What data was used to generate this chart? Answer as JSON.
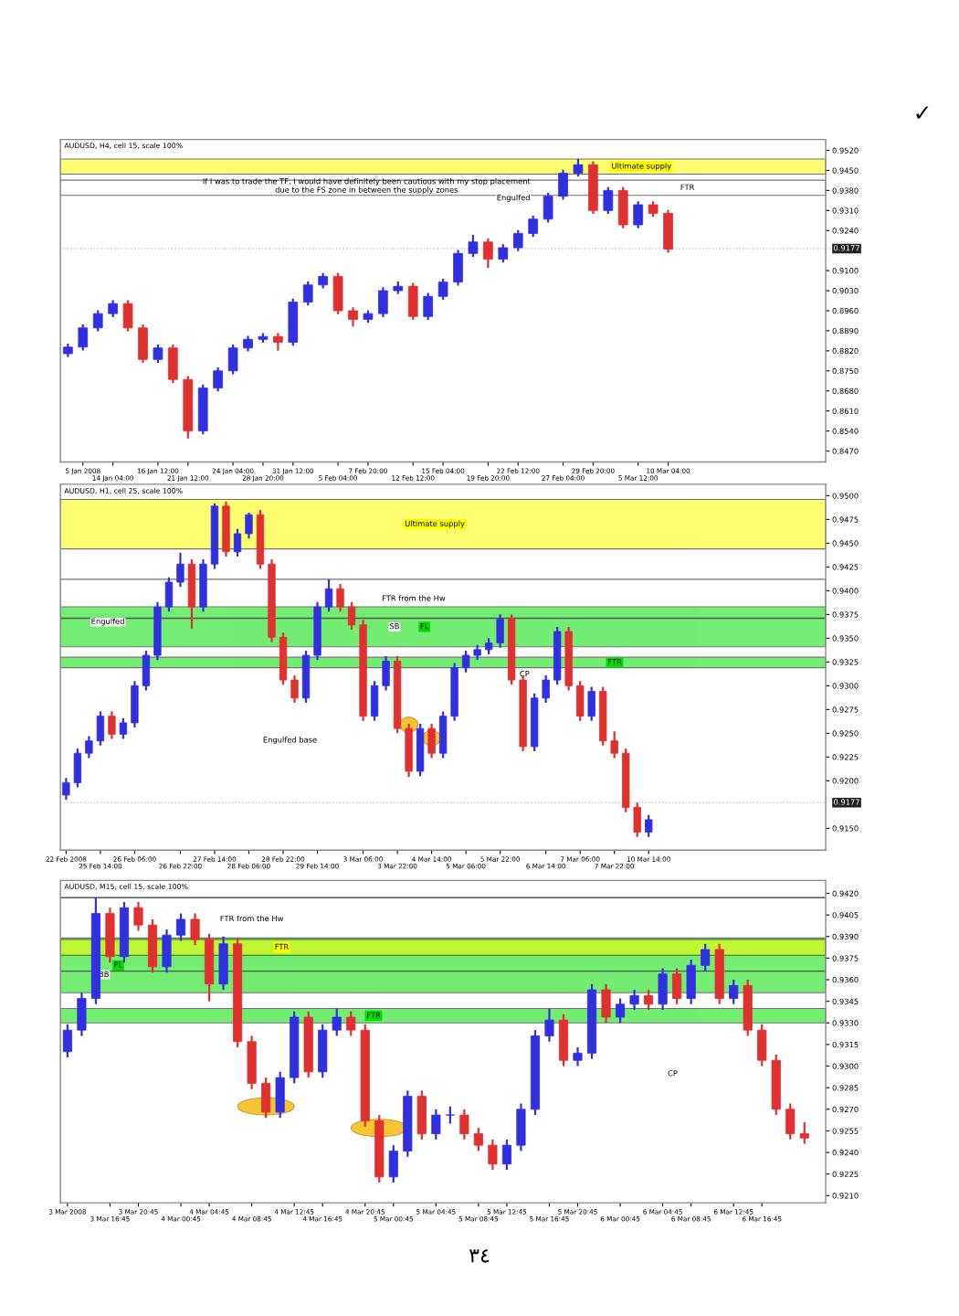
{
  "chart_data": [
    {
      "type": "candlestick",
      "title": "AUDUSD, H4, cell 15, scale 100%",
      "colors": [
        "#3030e0",
        "#3030e0",
        "#3030e0",
        "#3030e0",
        "#e03030",
        "#e03030",
        "#3030e0",
        "#e03030",
        "#e03030",
        "#3030e0",
        "#3030e0",
        "#3030e0",
        "#3030e0",
        "#3030e0",
        "#e03030",
        "#3030e0",
        "#3030e0",
        "#3030e0",
        "#e03030",
        "#e03030",
        "#3030e0",
        "#3030e0",
        "#3030e0",
        "#e03030",
        "#3030e0",
        "#3030e0",
        "#3030e0",
        "#3030e0",
        "#e03030",
        "#3030e0",
        "#3030e0",
        "#3030e0",
        "#3030e0",
        "#3030e0",
        "#3030e0",
        "#e03030",
        "#3030e0",
        "#e03030",
        "#3030e0",
        "#e03030",
        "#e03030",
        null,
        null,
        null,
        null,
        null,
        null,
        null,
        null,
        null,
        null
      ],
      "categories": [
        null,
        "5 Jan 2008",
        null,
        "14 Jan 04:00",
        null,
        null,
        "16 Jan 12:00",
        null,
        "21 Jan 12:00",
        null,
        null,
        "24 Jan 04:00",
        null,
        "28 Jan 20:00",
        null,
        "31 Jan 12:00",
        null,
        null,
        "5 Feb 04:00",
        null,
        "7 Feb 20:00",
        null,
        null,
        "12 Feb 12:00",
        null,
        "15 Feb 04:00",
        null,
        null,
        "19 Feb 20:00",
        null,
        "22 Feb 12:00",
        null,
        null,
        "27 Feb 04:00",
        null,
        "29 Feb 20:00",
        null,
        null,
        "5 Mar 12:00",
        null,
        "10 Mar 04:00",
        null,
        null,
        null,
        null,
        null,
        null,
        null,
        null,
        null,
        null
      ],
      "ohlc": [
        [
          0.881,
          0.8845,
          0.8798,
          0.8833
        ],
        [
          0.8833,
          0.8912,
          0.8821,
          0.89
        ],
        [
          0.89,
          0.8962,
          0.8888,
          0.895
        ],
        [
          0.895,
          0.8997,
          0.8938,
          0.8985
        ],
        [
          0.8985,
          0.8997,
          0.8888,
          0.89
        ],
        [
          0.89,
          0.8912,
          0.8778,
          0.879
        ],
        [
          0.879,
          0.8842,
          0.8778,
          0.883
        ],
        [
          0.883,
          0.8842,
          0.8708,
          0.872
        ],
        [
          0.872,
          0.8732,
          0.8514,
          0.854
        ],
        [
          0.854,
          0.8702,
          0.8528,
          0.869
        ],
        [
          0.869,
          0.8762,
          0.8678,
          0.875
        ],
        [
          0.875,
          0.8842,
          0.8738,
          0.883
        ],
        [
          0.883,
          0.8872,
          0.8818,
          0.886
        ],
        [
          0.886,
          0.8882,
          0.8848,
          0.887
        ],
        [
          0.887,
          0.8882,
          0.882,
          0.885
        ],
        [
          0.885,
          0.9002,
          0.8838,
          0.899
        ],
        [
          0.899,
          0.9062,
          0.8978,
          0.905
        ],
        [
          0.905,
          0.9092,
          0.9038,
          0.908
        ],
        [
          0.908,
          0.9092,
          0.8948,
          0.896
        ],
        [
          0.896,
          0.8972,
          0.8905,
          0.893
        ],
        [
          0.893,
          0.8962,
          0.8918,
          0.895
        ],
        [
          0.895,
          0.9042,
          0.8938,
          0.903
        ],
        [
          0.903,
          0.9062,
          0.9018,
          0.9045
        ],
        [
          0.9045,
          0.9057,
          0.8928,
          0.894
        ],
        [
          0.894,
          0.9022,
          0.8928,
          0.901
        ],
        [
          0.901,
          0.9072,
          0.8998,
          0.906
        ],
        [
          0.906,
          0.9172,
          0.9048,
          0.916
        ],
        [
          0.916,
          0.9225,
          0.9148,
          0.92
        ],
        [
          0.92,
          0.9212,
          0.911,
          0.914
        ],
        [
          0.914,
          0.9192,
          0.9128,
          0.918
        ],
        [
          0.918,
          0.9242,
          0.9168,
          0.923
        ],
        [
          0.923,
          0.9292,
          0.9218,
          0.928
        ],
        [
          0.928,
          0.9372,
          0.9268,
          0.936
        ],
        [
          0.936,
          0.9452,
          0.9348,
          0.944
        ],
        [
          0.944,
          0.949,
          0.9428,
          0.947
        ],
        [
          0.947,
          0.9482,
          0.9298,
          0.931
        ],
        [
          0.931,
          0.9392,
          0.9298,
          0.938
        ],
        [
          0.938,
          0.9392,
          0.9248,
          0.926
        ],
        [
          0.926,
          0.9342,
          0.9248,
          0.933
        ],
        [
          0.933,
          0.9342,
          0.9288,
          0.93
        ],
        [
          0.93,
          0.9312,
          0.9163,
          0.9175
        ],
        null,
        null,
        null,
        null,
        null,
        null,
        null,
        null,
        null,
        null
      ],
      "ylim": [
        0.8432,
        0.9558
      ],
      "yticks": [
        {
          "value": 0.952,
          "label": "0.9520"
        },
        {
          "value": 0.945,
          "label": "0.9450"
        },
        {
          "value": 0.938,
          "label": "0.9380"
        },
        {
          "value": 0.931,
          "label": "0.9310"
        },
        {
          "value": 0.924,
          "label": "0.9240"
        },
        {
          "value": 0.91,
          "label": "0.9100"
        },
        {
          "value": 0.903,
          "label": "0.9030"
        },
        {
          "value": 0.896,
          "label": "0.8960"
        },
        {
          "value": 0.889,
          "label": "0.8890"
        },
        {
          "value": 0.882,
          "label": "0.8820"
        },
        {
          "value": 0.875,
          "label": "0.8750"
        },
        {
          "value": 0.868,
          "label": "0.8680"
        },
        {
          "value": 0.861,
          "label": "0.8610"
        },
        {
          "value": 0.854,
          "label": "0.8540"
        },
        {
          "value": 0.847,
          "label": "0.8470"
        }
      ],
      "bands": [
        {
          "axis": "y",
          "from": 0.9437,
          "to": 0.949,
          "label": "Ultimate supply",
          "color": "#ffff00"
        },
        {
          "axis": "y",
          "from": 0.9363,
          "to": 0.9416,
          "label": "FTR",
          "color": "#ffffff"
        }
      ],
      "ref_lines": [
        {
          "axis": "y",
          "value": 0.9177,
          "label": "0.9177",
          "color": "#c8c8c8",
          "line_style": "dotted"
        }
      ],
      "annotations": [
        "If I was to trade the TF, I would have definitely been cautious with my stop placement due to the FS zone in between the supply zones",
        {
          "text": "Engulfed",
          "y": 0.9353
        },
        "✓"
      ]
    },
    {
      "type": "candlestick",
      "title": "AUDUSD, H1, cell 25, scale 100%",
      "colors": [
        "#3030e0",
        "#3030e0",
        "#3030e0",
        "#3030e0",
        "#e03030",
        "#3030e0",
        "#3030e0",
        "#3030e0",
        "#3030e0",
        "#3030e0",
        "#3030e0",
        "#e03030",
        "#3030e0",
        "#3030e0",
        "#e03030",
        "#3030e0",
        "#3030e0",
        "#e03030",
        "#e03030",
        "#e03030",
        "#e03030",
        "#3030e0",
        "#3030e0",
        "#3030e0",
        "#e03030",
        "#e03030",
        "#e03030",
        "#3030e0",
        "#3030e0",
        "#e03030",
        "#e03030",
        "#3030e0",
        "#e03030",
        "#3030e0",
        "#3030e0",
        "#3030e0",
        "#3030e0",
        "#3030e0",
        "#3030e0",
        "#e03030",
        "#e03030",
        "#3030e0",
        "#3030e0",
        "#3030e0",
        "#e03030",
        "#e03030",
        "#3030e0",
        "#e03030",
        "#e03030",
        "#e03030",
        "#e03030",
        "#3030e0",
        null,
        null,
        null,
        null,
        null,
        null,
        null,
        null,
        null,
        null,
        null,
        null,
        null,
        null,
        null
      ],
      "categories": [
        "22 Feb 2008",
        null,
        null,
        "25 Feb 14:00",
        null,
        null,
        "26 Feb 06:00",
        null,
        null,
        null,
        "26 Feb 22:00",
        null,
        null,
        "27 Feb 14:00",
        null,
        null,
        "28 Feb 06:00",
        null,
        null,
        "28 Feb 22:00",
        null,
        null,
        "29 Feb 14:00",
        null,
        null,
        null,
        "3 Mar 06:00",
        null,
        null,
        "3 Mar 22:00",
        null,
        null,
        "4 Mar 14:00",
        null,
        null,
        "5 Mar 06:00",
        null,
        null,
        "5 Mar 22:00",
        null,
        null,
        null,
        "6 Mar 14:00",
        null,
        null,
        "7 Mar 06:00",
        null,
        null,
        "7 Mar 22:00",
        null,
        null,
        "10 Mar 14:00",
        null,
        null,
        null,
        null,
        null,
        null,
        null,
        null,
        null,
        null,
        null,
        null,
        null,
        null,
        null
      ],
      "ohlc": [
        [
          0.9185,
          0.9203,
          0.918,
          0.9198
        ],
        [
          0.9198,
          0.9234,
          0.9193,
          0.9229
        ],
        [
          0.9229,
          0.9247,
          0.9224,
          0.9242
        ],
        [
          0.9242,
          0.9273,
          0.9237,
          0.9268
        ],
        [
          0.9268,
          0.9273,
          0.9244,
          0.9249
        ],
        [
          0.9249,
          0.9266,
          0.9244,
          0.9261
        ],
        [
          0.9261,
          0.9305,
          0.9256,
          0.93
        ],
        [
          0.93,
          0.9337,
          0.9295,
          0.9332
        ],
        [
          0.9332,
          0.9388,
          0.9327,
          0.9383
        ],
        [
          0.9383,
          0.9414,
          0.9378,
          0.9409
        ],
        [
          0.9409,
          0.944,
          0.9404,
          0.9428
        ],
        [
          0.9428,
          0.9433,
          0.936,
          0.9383
        ],
        [
          0.9383,
          0.9433,
          0.9378,
          0.9428
        ],
        [
          0.9428,
          0.9492,
          0.9423,
          0.9489
        ],
        [
          0.9489,
          0.9494,
          0.9436,
          0.9441
        ],
        [
          0.9441,
          0.9465,
          0.9436,
          0.946
        ],
        [
          0.946,
          0.9482,
          0.9455,
          0.948
        ],
        [
          0.948,
          0.9485,
          0.9423,
          0.9428
        ],
        [
          0.9428,
          0.9433,
          0.9346,
          0.9351
        ],
        [
          0.9351,
          0.9356,
          0.9301,
          0.9306
        ],
        [
          0.9306,
          0.9311,
          0.9282,
          0.9287
        ],
        [
          0.9287,
          0.9337,
          0.9282,
          0.9332
        ],
        [
          0.9332,
          0.9388,
          0.9327,
          0.9383
        ],
        [
          0.9383,
          0.9412,
          0.9378,
          0.9402
        ],
        [
          0.9402,
          0.9407,
          0.9378,
          0.9383
        ],
        [
          0.9383,
          0.9388,
          0.9359,
          0.9364
        ],
        [
          0.9364,
          0.9369,
          0.9263,
          0.9268
        ],
        [
          0.9268,
          0.9305,
          0.9263,
          0.93
        ],
        [
          0.93,
          0.9331,
          0.9295,
          0.9326
        ],
        [
          0.9326,
          0.9331,
          0.925,
          0.9255
        ],
        [
          0.9255,
          0.926,
          0.9204,
          0.921
        ],
        [
          0.921,
          0.926,
          0.9205,
          0.9255
        ],
        [
          0.9255,
          0.926,
          0.9224,
          0.9229
        ],
        [
          0.9229,
          0.9273,
          0.9224,
          0.9268
        ],
        [
          0.9268,
          0.9324,
          0.9263,
          0.9319
        ],
        [
          0.9319,
          0.9337,
          0.9314,
          0.9332
        ],
        [
          0.9332,
          0.9343,
          0.9327,
          0.9338
        ],
        [
          0.9338,
          0.935,
          0.9333,
          0.9345
        ],
        [
          0.9345,
          0.9375,
          0.934,
          0.937
        ],
        [
          0.937,
          0.9375,
          0.9301,
          0.9306
        ],
        [
          0.9306,
          0.9311,
          0.9231,
          0.9236
        ],
        [
          0.9236,
          0.9292,
          0.9231,
          0.9287
        ],
        [
          0.9287,
          0.9311,
          0.9282,
          0.9306
        ],
        [
          0.9306,
          0.9362,
          0.9301,
          0.9357
        ],
        [
          0.9357,
          0.9362,
          0.9295,
          0.93
        ],
        [
          0.93,
          0.9305,
          0.9263,
          0.9268
        ],
        [
          0.9268,
          0.9299,
          0.9263,
          0.9294
        ],
        [
          0.9294,
          0.9299,
          0.9237,
          0.9242
        ],
        [
          0.9242,
          0.9252,
          0.9224,
          0.9229
        ],
        [
          0.9229,
          0.9234,
          0.9167,
          0.9172
        ],
        [
          0.9172,
          0.9177,
          0.9141,
          0.9146
        ],
        [
          0.9146,
          0.9164,
          0.9141,
          0.9159
        ],
        null,
        null,
        null,
        null,
        null,
        null,
        null,
        null,
        null,
        null,
        null,
        null,
        null,
        null,
        null
      ],
      "ylim": [
        0.9127,
        0.9512
      ],
      "yticks": [
        {
          "value": 0.95,
          "label": "0.9500"
        },
        {
          "value": 0.9475,
          "label": "0.9475"
        },
        {
          "value": 0.945,
          "label": "0.9450"
        },
        {
          "value": 0.9425,
          "label": "0.9425"
        },
        {
          "value": 0.94,
          "label": "0.9400"
        },
        {
          "value": 0.9375,
          "label": "0.9375"
        },
        {
          "value": 0.935,
          "label": "0.9350"
        },
        {
          "value": 0.9325,
          "label": "0.9325"
        },
        {
          "value": 0.93,
          "label": "0.9300"
        },
        {
          "value": 0.9275,
          "label": "0.9275"
        },
        {
          "value": 0.925,
          "label": "0.9250"
        },
        {
          "value": 0.9225,
          "label": "0.9225"
        },
        {
          "value": 0.92,
          "label": "0.9200"
        },
        {
          "value": 0.915,
          "label": "0.9150"
        }
      ],
      "bands": [
        {
          "axis": "y",
          "from": 0.9444,
          "to": 0.9496,
          "label": "Ultimate supply",
          "color": "#ffff00"
        },
        {
          "axis": "y",
          "from": 0.9371,
          "to": 0.9412,
          "label": "FTR from the Hw",
          "color": "#ffffff"
        },
        {
          "axis": "y",
          "from": 0.9341,
          "to": 0.9383,
          "label": "FL",
          "color": "#00e000"
        },
        {
          "axis": "y",
          "from": 0.9319,
          "to": 0.933,
          "label": "FTR",
          "color": "#00e000"
        }
      ],
      "ref_lines": [
        {
          "axis": "y",
          "value": 0.9371,
          "label": "Engulfed",
          "color": "#555555",
          "line_style": "solid"
        },
        {
          "axis": "y",
          "value": 0.9177,
          "label": "0.9177",
          "color": "#c8c8c8",
          "line_style": "dotted"
        }
      ],
      "annotations": [
        {
          "text": "SB",
          "y": 0.9362
        },
        {
          "text": "CP",
          "y": 0.9312
        },
        "Engulfed base"
      ]
    },
    {
      "type": "candlestick",
      "title": "AUDUSD, M15, cell 15, scale 100%",
      "colors": [
        "#3030e0",
        "#3030e0",
        "#3030e0",
        "#e03030",
        "#3030e0",
        "#e03030",
        "#e03030",
        "#3030e0",
        "#3030e0",
        "#e03030",
        "#e03030",
        "#3030e0",
        "#e03030",
        "#e03030",
        "#e03030",
        "#3030e0",
        "#3030e0",
        "#e03030",
        "#3030e0",
        "#3030e0",
        "#e03030",
        "#e03030",
        "#e03030",
        "#3030e0",
        "#3030e0",
        "#e03030",
        "#3030e0",
        "#3030e0",
        "#e03030",
        "#e03030",
        "#e03030",
        "#3030e0",
        "#3030e0",
        "#3030e0",
        "#3030e0",
        "#e03030",
        "#3030e0",
        "#3030e0",
        "#e03030",
        "#3030e0",
        "#3030e0",
        "#e03030",
        "#3030e0",
        "#e03030",
        "#3030e0",
        "#3030e0",
        "#e03030",
        "#3030e0",
        "#e03030",
        "#e03030",
        "#e03030",
        "#e03030",
        "#e03030",
        null
      ],
      "categories": [
        "3 Mar 2008",
        null,
        null,
        "3 Mar 16:45",
        null,
        "3 Mar 20:45",
        null,
        null,
        "4 Mar 00:45",
        null,
        "4 Mar 04:45",
        null,
        null,
        "4 Mar 08:45",
        null,
        null,
        "4 Mar 12:45",
        null,
        "4 Mar 16:45",
        null,
        null,
        "4 Mar 20:45",
        null,
        "5 Mar 00:45",
        null,
        null,
        "5 Mar 04:45",
        null,
        null,
        "5 Mar 08:45",
        null,
        "5 Mar 12:45",
        null,
        null,
        "5 Mar 16:45",
        null,
        "5 Mar 20:45",
        null,
        null,
        "6 Mar 00:45",
        null,
        null,
        "6 Mar 04:45",
        null,
        "6 Mar 08:45",
        null,
        null,
        "6 Mar 12:45",
        null,
        "6 Mar 16:45",
        null,
        null,
        null,
        null
      ],
      "ohlc": [
        [
          0.931,
          0.9329,
          0.9306,
          0.9325
        ],
        [
          0.9325,
          0.9351,
          0.9321,
          0.9347
        ],
        [
          0.9347,
          0.9417,
          0.9343,
          0.9406
        ],
        [
          0.9406,
          0.941,
          0.9372,
          0.9376
        ],
        [
          0.9376,
          0.9414,
          0.9372,
          0.941
        ],
        [
          0.941,
          0.9414,
          0.9394,
          0.9398
        ],
        [
          0.9398,
          0.9402,
          0.9365,
          0.9369
        ],
        [
          0.9369,
          0.9395,
          0.9365,
          0.9391
        ],
        [
          0.9391,
          0.9406,
          0.9387,
          0.9402
        ],
        [
          0.9402,
          0.9406,
          0.9384,
          0.9388
        ],
        [
          0.9388,
          0.9392,
          0.9345,
          0.9357
        ],
        [
          0.9357,
          0.939,
          0.9353,
          0.9385
        ],
        [
          0.9385,
          0.9389,
          0.9313,
          0.9317
        ],
        [
          0.9317,
          0.9321,
          0.9284,
          0.9288
        ],
        [
          0.9288,
          0.9292,
          0.9264,
          0.9268
        ],
        [
          0.9268,
          0.9296,
          0.9264,
          0.9292
        ],
        [
          0.9292,
          0.9338,
          0.9288,
          0.9334
        ],
        [
          0.9334,
          0.9338,
          0.9292,
          0.9296
        ],
        [
          0.9296,
          0.9329,
          0.9292,
          0.9325
        ],
        [
          0.9325,
          0.934,
          0.9321,
          0.9334
        ],
        [
          0.9334,
          0.9338,
          0.9321,
          0.9325
        ],
        [
          0.9325,
          0.9329,
          0.9258,
          0.9262
        ],
        [
          0.9262,
          0.9266,
          0.9219,
          0.9223
        ],
        [
          0.9223,
          0.9245,
          0.9219,
          0.9241
        ],
        [
          0.9241,
          0.9283,
          0.9237,
          0.9279
        ],
        [
          0.9279,
          0.9283,
          0.9249,
          0.9253
        ],
        [
          0.9253,
          0.927,
          0.9249,
          0.9266
        ],
        [
          0.9266,
          0.9272,
          0.926,
          0.9266
        ],
        [
          0.9266,
          0.927,
          0.9249,
          0.9253
        ],
        [
          0.9253,
          0.9257,
          0.9241,
          0.9245
        ],
        [
          0.9245,
          0.9249,
          0.9228,
          0.9232
        ],
        [
          0.9232,
          0.9249,
          0.9228,
          0.9245
        ],
        [
          0.9245,
          0.9274,
          0.9241,
          0.927
        ],
        [
          0.927,
          0.9325,
          0.9266,
          0.9321
        ],
        [
          0.9321,
          0.934,
          0.9317,
          0.9332
        ],
        [
          0.9332,
          0.9336,
          0.93,
          0.9304
        ],
        [
          0.9304,
          0.9313,
          0.93,
          0.9309
        ],
        [
          0.9309,
          0.9357,
          0.9305,
          0.9353
        ],
        [
          0.9353,
          0.9357,
          0.933,
          0.9334
        ],
        [
          0.9334,
          0.9347,
          0.933,
          0.9343
        ],
        [
          0.9343,
          0.9353,
          0.9339,
          0.9349
        ],
        [
          0.9349,
          0.9353,
          0.9339,
          0.9343
        ],
        [
          0.9343,
          0.9368,
          0.9339,
          0.9364
        ],
        [
          0.9364,
          0.9368,
          0.9343,
          0.9347
        ],
        [
          0.9347,
          0.9374,
          0.9343,
          0.937
        ],
        [
          0.937,
          0.9385,
          0.9366,
          0.9381
        ],
        [
          0.9381,
          0.9385,
          0.9343,
          0.9347
        ],
        [
          0.9347,
          0.936,
          0.9343,
          0.9356
        ],
        [
          0.9356,
          0.936,
          0.9321,
          0.9325
        ],
        [
          0.9325,
          0.9329,
          0.93,
          0.9304
        ],
        [
          0.9304,
          0.9308,
          0.9266,
          0.927
        ],
        [
          0.927,
          0.9274,
          0.9249,
          0.9253
        ],
        [
          0.9253,
          0.9261,
          0.9246,
          0.925
        ],
        null
      ],
      "ylim": [
        0.9205,
        0.9429
      ],
      "yticks": [
        {
          "value": 0.942,
          "label": "0.9420"
        },
        {
          "value": 0.9405,
          "label": "0.9405"
        },
        {
          "value": 0.939,
          "label": "0.9390"
        },
        {
          "value": 0.9375,
          "label": "0.9375"
        },
        {
          "value": 0.936,
          "label": "0.9360"
        },
        {
          "value": 0.9345,
          "label": "0.9345"
        },
        {
          "value": 0.933,
          "label": "0.9330"
        },
        {
          "value": 0.9315,
          "label": "0.9315"
        },
        {
          "value": 0.93,
          "label": "0.9300"
        },
        {
          "value": 0.9285,
          "label": "0.9285"
        },
        {
          "value": 0.927,
          "label": "0.9270"
        },
        {
          "value": 0.9255,
          "label": "0.9255"
        },
        {
          "value": 0.924,
          "label": "0.9240"
        },
        {
          "value": 0.9225,
          "label": "0.9225"
        },
        {
          "value": 0.921,
          "label": "0.9210"
        }
      ],
      "bands": [
        {
          "axis": "y",
          "from": 0.9351,
          "to": 0.9389,
          "label": "FL",
          "color": "#00e000"
        },
        {
          "axis": "y",
          "from": 0.9377,
          "to": 0.9388,
          "label": "FTR",
          "color": "#ffff00"
        },
        {
          "axis": "y",
          "from": 0.933,
          "to": 0.934,
          "label": "FTR",
          "color": "#00e000"
        }
      ],
      "ref_lines": [
        {
          "axis": "y",
          "value": 0.9417,
          "color": "#555555",
          "line_style": "solid"
        },
        {
          "axis": "y",
          "value": 0.9366,
          "label": "BB",
          "color": "#555555",
          "line_style": "solid"
        }
      ],
      "annotations": [
        "FTR from the Hw",
        "CP",
        "٣٤"
      ]
    }
  ]
}
